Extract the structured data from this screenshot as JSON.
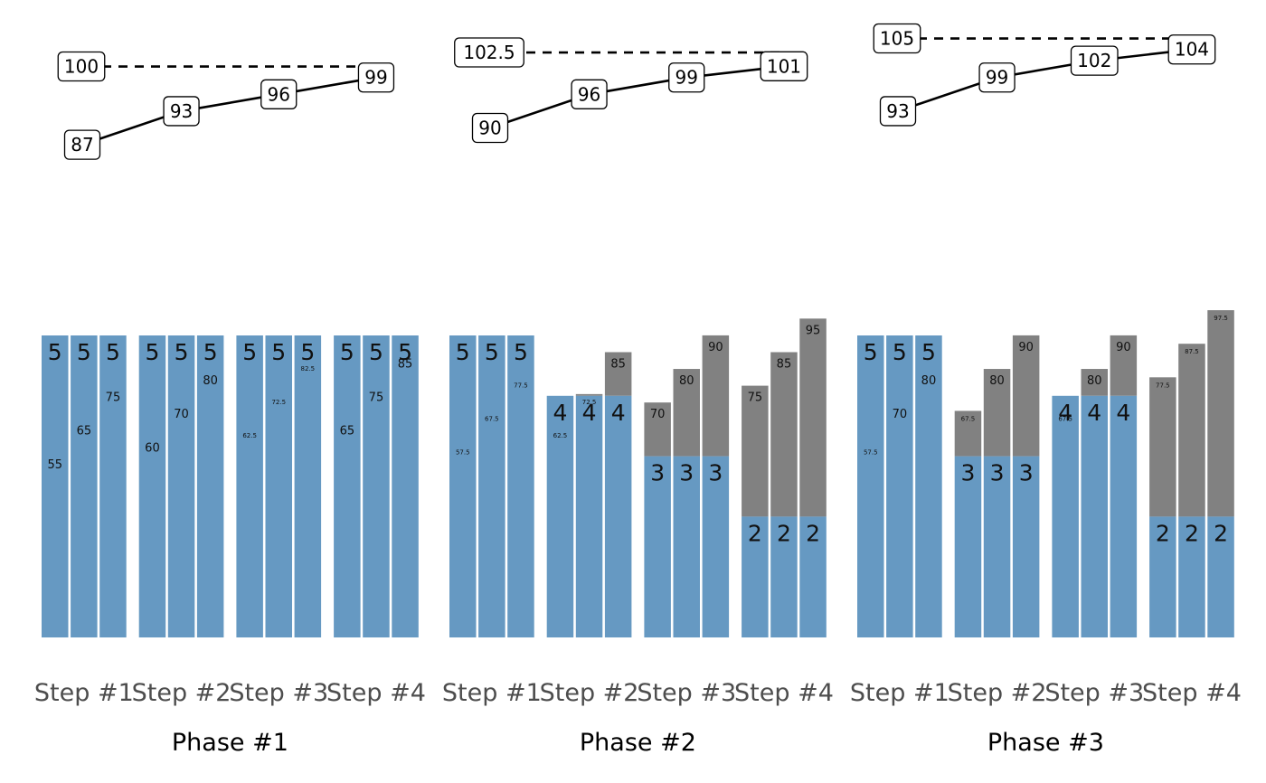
{
  "chart_data": {
    "type": "bar",
    "colors": {
      "base": "#6699c2",
      "top": "#818181"
    },
    "facets": [
      {
        "phase": "Phase #1",
        "target": 100,
        "steps": [
          {
            "label": "Step #1",
            "base": 5,
            "totals": [
              55,
              65,
              75
            ],
            "score": 87
          },
          {
            "label": "Step #2",
            "base": 5,
            "totals": [
              60,
              70,
              80
            ],
            "score": 93
          },
          {
            "label": "Step #3",
            "base": 5,
            "totals": [
              62.5,
              72.5,
              82.5
            ],
            "score": 96
          },
          {
            "label": "Step #4",
            "base": 5,
            "totals": [
              65,
              75,
              85
            ],
            "score": 99
          }
        ]
      },
      {
        "phase": "Phase #2",
        "target": 102.5,
        "steps": [
          {
            "label": "Step #1",
            "base": 5,
            "totals": [
              57.5,
              67.5,
              77.5
            ],
            "score": 90
          },
          {
            "label": "Step #2",
            "base": 4,
            "totals": [
              62.5,
              72.5,
              85
            ],
            "score": 96
          },
          {
            "label": "Step #3",
            "base": 3,
            "totals": [
              70,
              80,
              90
            ],
            "score": 99
          },
          {
            "label": "Step #4",
            "base": 2,
            "totals": [
              75,
              85,
              95
            ],
            "score": 101
          }
        ]
      },
      {
        "phase": "Phase #3",
        "target": 105,
        "steps": [
          {
            "label": "Step #1",
            "base": 5,
            "totals": [
              57.5,
              70,
              80
            ],
            "score": 93
          },
          {
            "label": "Step #2",
            "base": 3,
            "totals": [
              67.5,
              80,
              90
            ],
            "score": 99
          },
          {
            "label": "Step #3",
            "base": 4,
            "totals": [
              67.5,
              80,
              90
            ],
            "score": 102
          },
          {
            "label": "Step #4",
            "base": 2,
            "totals": [
              77.5,
              87.5,
              97.5
            ],
            "score": 104
          }
        ]
      }
    ]
  }
}
